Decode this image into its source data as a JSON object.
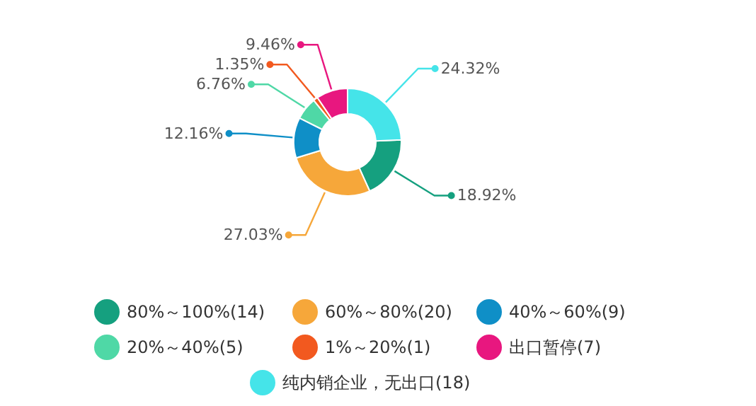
{
  "chart_data": {
    "type": "donut",
    "categories": [
      "80%～100%(14)",
      "60%～80%(20)",
      "40%～60%(9)",
      "20%～40%(5)",
      "1%～20%(1)",
      "出口暂停(7)",
      "纯内销企业，无出口(18)"
    ],
    "values": [
      18.92,
      27.03,
      12.16,
      6.76,
      1.35,
      9.46,
      24.32
    ],
    "value_labels": [
      "18.92%",
      "27.03%",
      "12.16%",
      "6.76%",
      "1.35%",
      "9.46%",
      "24.32%"
    ],
    "colors": [
      "#15a07f",
      "#f6a73a",
      "#0f8fc7",
      "#4fd8a6",
      "#f2591f",
      "#e8177f",
      "#45e4e9"
    ],
    "legend": "bottom"
  }
}
